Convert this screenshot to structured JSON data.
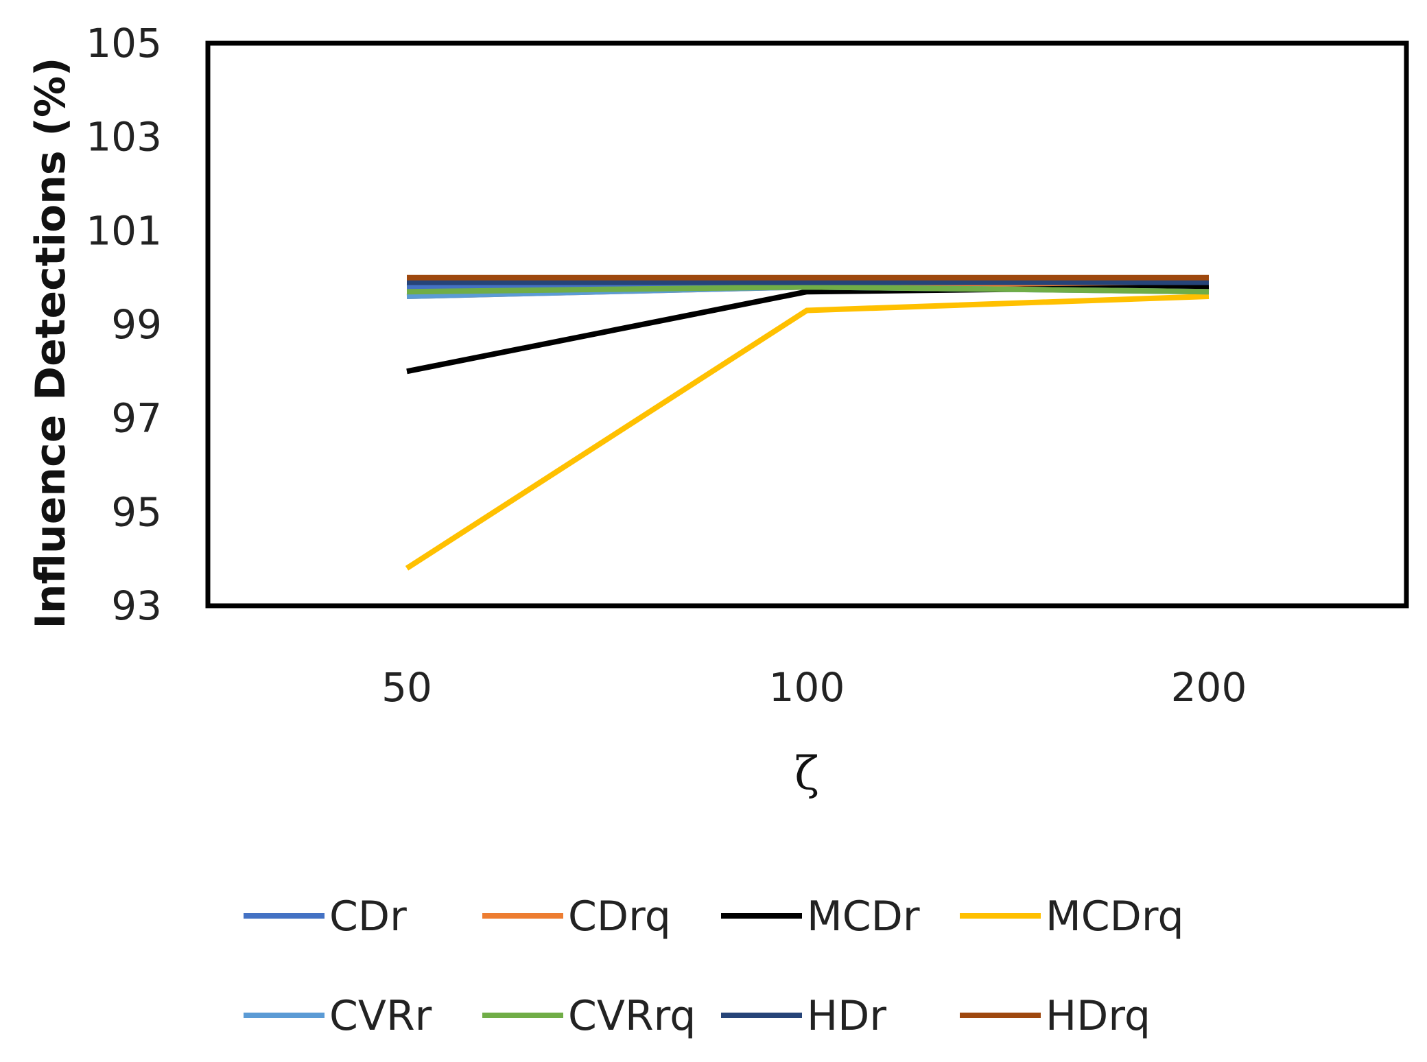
{
  "chart_data": {
    "type": "line",
    "title": "",
    "xlabel": "ζ",
    "ylabel": "Influence Detections (%)",
    "categories": [
      "50",
      "100",
      "200"
    ],
    "ylim": [
      93,
      105
    ],
    "yticks": [
      "93",
      "95",
      "97",
      "99",
      "101",
      "103",
      "105"
    ],
    "grid": false,
    "legend_position": "bottom",
    "series": [
      {
        "name": "CDr",
        "color": "#4472C4",
        "values": [
          99.8,
          99.9,
          99.9
        ]
      },
      {
        "name": "CDrq",
        "color": "#ED7D31",
        "values": [
          99.6,
          99.8,
          99.8
        ]
      },
      {
        "name": "MCDr",
        "color": "#000000",
        "values": [
          98.0,
          99.7,
          99.8
        ]
      },
      {
        "name": "MCDrq",
        "color": "#FFC000",
        "values": [
          93.8,
          99.3,
          99.6
        ]
      },
      {
        "name": "CVRr",
        "color": "#5B9BD5",
        "values": [
          99.6,
          99.8,
          99.7
        ]
      },
      {
        "name": "CVRrq",
        "color": "#70AD47",
        "values": [
          99.7,
          99.8,
          99.7
        ]
      },
      {
        "name": "HDr",
        "color": "#264478",
        "values": [
          99.9,
          99.9,
          99.9
        ]
      },
      {
        "name": "HDrq",
        "color": "#9E480E",
        "values": [
          100.0,
          100.0,
          100.0
        ]
      }
    ]
  }
}
